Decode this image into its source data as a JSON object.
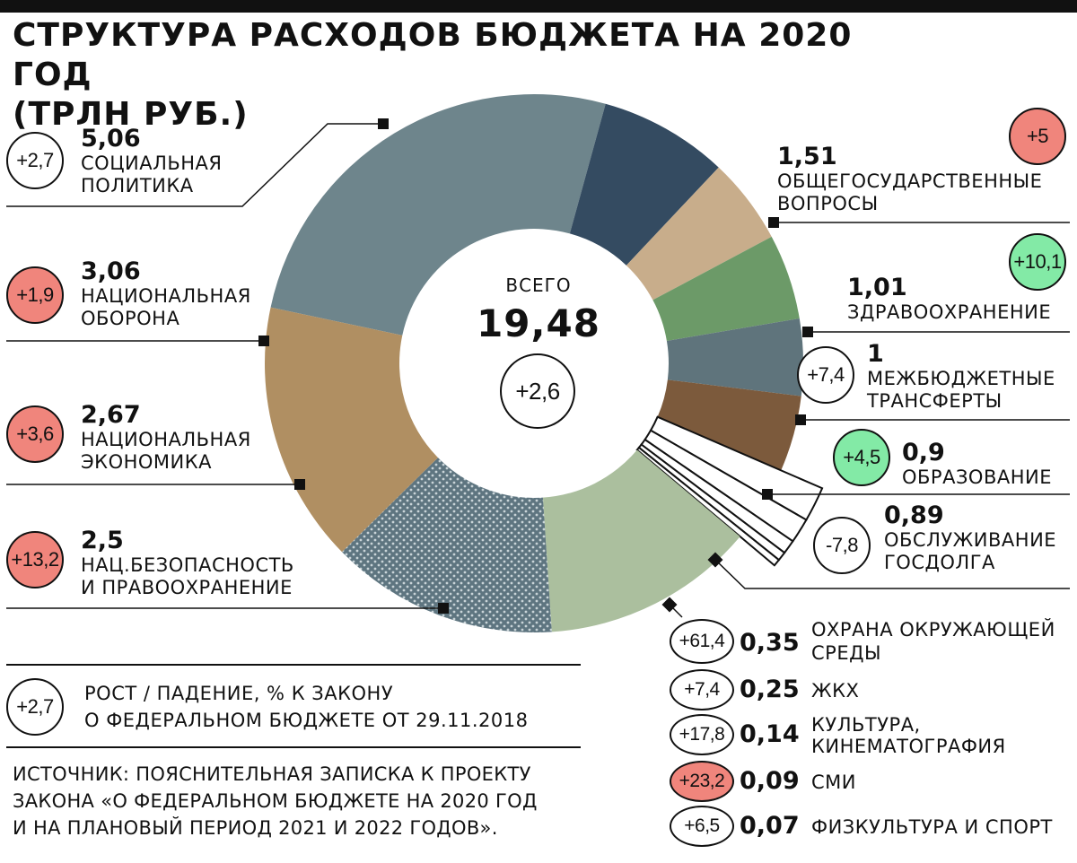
{
  "title_line1": "СТРУКТУРА РАСХОДОВ БЮДЖЕТА НА 2020 ГОД",
  "title_line2": "(ТРЛН РУБ.)",
  "center": {
    "label": "ВСЕГО",
    "total": "19,48",
    "change": "+2,6"
  },
  "legend": {
    "example_change": "+2,7",
    "line1": "РОСТ / ПАДЕНИЕ, % К ЗАКОНУ",
    "line2": "О ФЕДЕРАЛЬНОМ БЮДЖЕТЕ ОТ 29.11.2018"
  },
  "source": {
    "line1": "ИСТОЧНИК: ПОЯСНИТЕЛЬНАЯ ЗАПИСКА К ПРОЕКТУ",
    "line2": "ЗАКОНА «О ФЕДЕРАЛЬНОМ БЮДЖЕТЕ НА 2020 ГОД",
    "line3": "И НА ПЛАНОВЫЙ ПЕРИОД 2021 И 2022 ГОДОВ»."
  },
  "colors": {
    "growth": "#f0857c",
    "growth_high": "#83eaa6",
    "decline": "#ffffff"
  },
  "chart_data": {
    "type": "pie",
    "donut": true,
    "unit": "трлн руб.",
    "total": 19.48,
    "total_change": 2.6,
    "slices": [
      {
        "key": "social",
        "value": 5.06,
        "label_value": "5,06",
        "name1": "СОЦИАЛЬНАЯ",
        "name2": "ПОЛИТИКА",
        "change": "+2,7",
        "badge": "none",
        "color": "#6e858c"
      },
      {
        "key": "general",
        "value": 1.51,
        "label_value": "1,51",
        "name1": "ОБЩЕГОСУДАРСТВЕННЫЕ",
        "name2": "ВОПРОСЫ",
        "change": "+5",
        "badge": "red",
        "color": "#344b61"
      },
      {
        "key": "health",
        "value": 1.01,
        "label_value": "1,01",
        "name1": "ЗДРАВООХРАНЕНИЕ",
        "name2": "",
        "change": "+10,1",
        "badge": "green",
        "color": "#c8ad8b"
      },
      {
        "key": "transfers",
        "value": 1.0,
        "label_value": "1",
        "name1": "МЕЖБЮДЖЕТНЫЕ",
        "name2": "ТРАНСФЕРТЫ",
        "change": "+7,4",
        "badge": "none",
        "color": "#6c9a68"
      },
      {
        "key": "education",
        "value": 0.9,
        "label_value": "0,9",
        "name1": "ОБРАЗОВАНИЕ",
        "name2": "",
        "change": "+4,5",
        "badge": "green",
        "color": "#5f747c"
      },
      {
        "key": "debt",
        "value": 0.89,
        "label_value": "0,89",
        "name1": "ОБСЛУЖИВАНИЕ",
        "name2": "ГОСДОЛГА",
        "change": "-7,8",
        "badge": "none",
        "color": "#7c5a3c"
      },
      {
        "key": "env",
        "value": 0.35,
        "label_value": "0,35",
        "name1": "ОХРАНА ОКРУЖАЮЩЕЙ",
        "name2": "СРЕДЫ",
        "change": "+61,4",
        "badge": "none",
        "color": "#ffffff"
      },
      {
        "key": "housing",
        "value": 0.25,
        "label_value": "0,25",
        "name1": "ЖКХ",
        "name2": "",
        "change": "+7,4",
        "badge": "none",
        "color": "#ffffff"
      },
      {
        "key": "culture",
        "value": 0.14,
        "label_value": "0,14",
        "name1": "КУЛЬТУРА,",
        "name2": "КИНЕМАТОГРАФИЯ",
        "change": "+17,8",
        "badge": "none",
        "color": "#ffffff"
      },
      {
        "key": "media",
        "value": 0.09,
        "label_value": "0,09",
        "name1": "СМИ",
        "name2": "",
        "change": "+23,2",
        "badge": "red",
        "color": "#ffffff"
      },
      {
        "key": "sport",
        "value": 0.07,
        "label_value": "0,07",
        "name1": "ФИЗКУЛЬТУРА И СПОРТ",
        "name2": "",
        "change": "+6,5",
        "badge": "none",
        "color": "#ffffff"
      },
      {
        "key": "security",
        "value": 2.5,
        "label_value": "2,5",
        "name1": "НАЦ.БЕЗОПАСНОСТЬ",
        "name2": "И ПРАВООХРАНЕНИЕ",
        "change": "+13,2",
        "badge": "red",
        "color": "#abbf9e"
      },
      {
        "key": "economy",
        "value": 2.67,
        "label_value": "2,67",
        "name1": "НАЦИОНАЛЬНАЯ",
        "name2": "ЭКОНОМИКА",
        "change": "+3,6",
        "badge": "red",
        "color": "#5e7580",
        "pattern": "dots"
      },
      {
        "key": "defense",
        "value": 3.06,
        "label_value": "3,06",
        "name1": "НАЦИОНАЛЬНАЯ",
        "name2": "ОБОРОНА",
        "change": "+1,9",
        "badge": "red",
        "color": "#b08f62"
      }
    ]
  }
}
